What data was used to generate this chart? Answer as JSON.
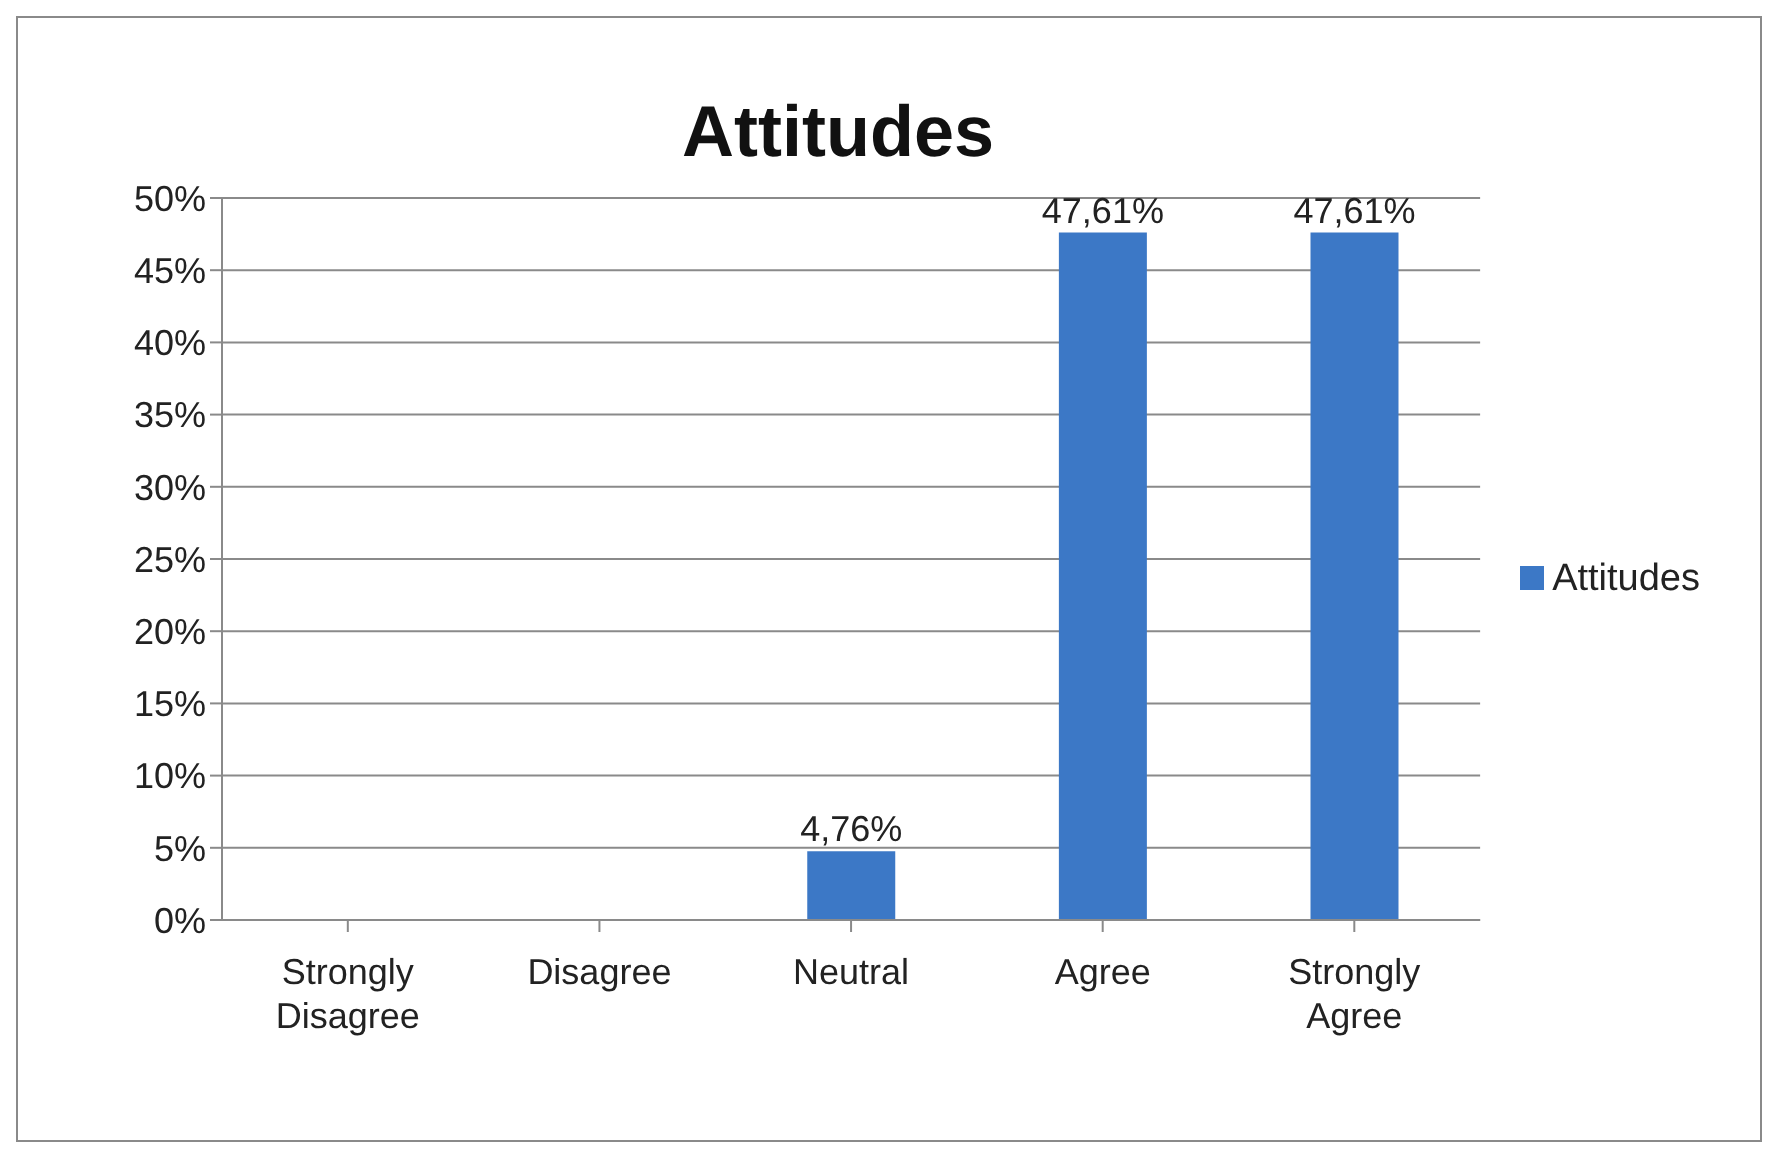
{
  "chart_data": {
    "type": "bar",
    "title": "Attitudes",
    "categories": [
      "Strongly Disagree",
      "Disagree",
      "Neutral",
      "Agree",
      "Strongly Agree"
    ],
    "series": [
      {
        "name": "Attitudes",
        "color": "#3c78c6",
        "values": [
          0,
          0,
          4.76,
          47.61,
          47.61
        ],
        "value_labels": [
          null,
          null,
          "4,76%",
          "47,61%",
          "47,61%"
        ]
      }
    ],
    "ylim": [
      0,
      50
    ],
    "yticks": [
      {
        "value": 0,
        "label": "0%"
      },
      {
        "value": 5,
        "label": "5%"
      },
      {
        "value": 10,
        "label": "10%"
      },
      {
        "value": 15,
        "label": "15%"
      },
      {
        "value": 20,
        "label": "20%"
      },
      {
        "value": 25,
        "label": "25%"
      },
      {
        "value": 30,
        "label": "30%"
      },
      {
        "value": 35,
        "label": "35%"
      },
      {
        "value": 40,
        "label": "40%"
      },
      {
        "value": 45,
        "label": "45%"
      },
      {
        "value": 50,
        "label": "50%"
      }
    ],
    "grid": "y",
    "legend": "right"
  }
}
